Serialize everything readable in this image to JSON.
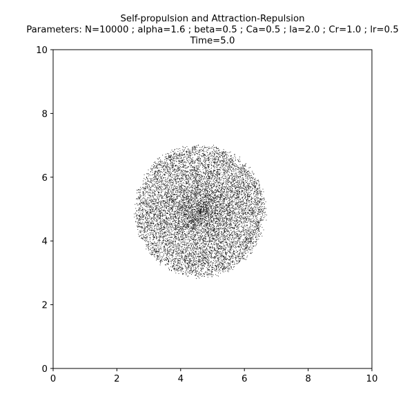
{
  "chart_data": {
    "type": "scatter",
    "title_lines": [
      "Self-propulsion and Attraction-Repulsion",
      "Parameters: N=10000 ; alpha=1.6 ; beta=0.5 ; Ca=0.5 ; la=2.0 ; Cr=1.0 ; lr=0.5",
      "Time=5.0"
    ],
    "xlim": [
      0,
      10
    ],
    "ylim": [
      0,
      10
    ],
    "xticks": [
      "0",
      "2",
      "4",
      "6",
      "8",
      "10"
    ],
    "yticks": [
      "0",
      "2",
      "4",
      "6",
      "8",
      "10"
    ],
    "xlabel": "",
    "ylabel": "",
    "grid": false,
    "marker_color": "#000000",
    "particle_cloud": {
      "count": 10000,
      "center": [
        4.6,
        4.95
      ],
      "radius": 2.05,
      "x_range": [
        2.5,
        6.6
      ],
      "y_range": [
        2.9,
        7.0
      ]
    }
  }
}
